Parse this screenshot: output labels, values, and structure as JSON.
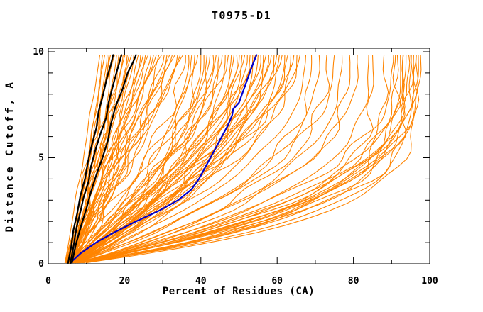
{
  "chart_data": {
    "type": "line",
    "title": "T0975-D1",
    "xlabel": "Percent of Residues (CA)",
    "ylabel": "Distance Cutoff, A",
    "xlim": [
      0,
      100
    ],
    "ylim": [
      0,
      10
    ],
    "x_ticks_major": [
      0,
      20,
      40,
      60,
      80,
      100
    ],
    "x_ticks_minor": [
      10,
      30,
      50,
      70,
      90
    ],
    "y_ticks_major": [
      0,
      5,
      10
    ],
    "y_ticks_minor": [
      1,
      2,
      3,
      4,
      6,
      7,
      8,
      9
    ],
    "grid": false,
    "legend": null,
    "colors": {
      "orange": "#ff8400",
      "black": "#000000",
      "blue": "#0000cc",
      "frame": "#000000",
      "background": "#ffffff"
    },
    "series": {
      "blue_curve": {
        "color": "#0000cc",
        "points": [
          [
            5.8,
            0.05
          ],
          [
            8.5,
            0.5
          ],
          [
            12.5,
            1.0
          ],
          [
            17.5,
            1.5
          ],
          [
            23.0,
            2.0
          ],
          [
            29.0,
            2.5
          ],
          [
            34.0,
            3.0
          ],
          [
            37.5,
            3.5
          ],
          [
            39.5,
            4.0
          ],
          [
            41.0,
            4.5
          ],
          [
            42.5,
            5.0
          ],
          [
            44.0,
            5.5
          ],
          [
            45.5,
            6.0
          ],
          [
            47.0,
            6.5
          ],
          [
            48.2,
            7.0
          ],
          [
            48.5,
            7.3
          ],
          [
            50.0,
            7.6
          ],
          [
            50.8,
            8.0
          ],
          [
            51.8,
            8.5
          ],
          [
            52.8,
            9.0
          ],
          [
            53.8,
            9.5
          ],
          [
            54.6,
            9.85
          ]
        ]
      },
      "black_curves": [
        {
          "points": [
            [
              5.2,
              0.05
            ],
            [
              6.0,
              0.8
            ],
            [
              6.6,
              1.6
            ],
            [
              7.6,
              2.4
            ],
            [
              8.4,
              3.2
            ],
            [
              9.6,
              4.0
            ],
            [
              10.4,
              4.8
            ],
            [
              11.4,
              5.6
            ],
            [
              12.6,
              6.4
            ],
            [
              13.2,
              7.2
            ],
            [
              14.4,
              8.0
            ],
            [
              15.4,
              8.8
            ],
            [
              16.4,
              9.4
            ],
            [
              17.0,
              9.85
            ]
          ]
        },
        {
          "points": [
            [
              5.8,
              0.05
            ],
            [
              6.6,
              0.8
            ],
            [
              7.4,
              1.7
            ],
            [
              8.6,
              2.6
            ],
            [
              9.2,
              3.1
            ],
            [
              10.6,
              3.9
            ],
            [
              11.2,
              4.6
            ],
            [
              12.4,
              5.4
            ],
            [
              13.8,
              6.2
            ],
            [
              15.2,
              6.9
            ],
            [
              15.8,
              7.6
            ],
            [
              16.8,
              8.3
            ],
            [
              18.0,
              9.1
            ],
            [
              19.2,
              9.85
            ]
          ]
        },
        {
          "points": [
            [
              6.2,
              0.05
            ],
            [
              7.2,
              0.9
            ],
            [
              8.6,
              1.8
            ],
            [
              10.0,
              2.6
            ],
            [
              11.2,
              3.4
            ],
            [
              12.6,
              4.2
            ],
            [
              14.2,
              5.0
            ],
            [
              15.6,
              5.8
            ],
            [
              16.4,
              6.6
            ],
            [
              17.6,
              7.4
            ],
            [
              19.4,
              8.2
            ],
            [
              20.8,
              9.0
            ],
            [
              22.2,
              9.5
            ],
            [
              23.0,
              9.85
            ]
          ]
        }
      ],
      "orange_curves": {
        "color": "#ff8400",
        "note": "each entry = [percent at cutoff 0, percent at cutoff 10, curvature exponent]; x(t)=start+(end-start)*(1-(1-t)^p)",
        "curves": [
          [
            4.3,
            13.5,
            1.05
          ],
          [
            5.7,
            14.2,
            1.2
          ],
          [
            6.4,
            14.8,
            0.95
          ],
          [
            4.9,
            15.4,
            1.3
          ],
          [
            7.0,
            15.9,
            1.1
          ],
          [
            5.2,
            16.3,
            1.0
          ],
          [
            6.1,
            16.9,
            1.25
          ],
          [
            4.6,
            17.4,
            0.9
          ],
          [
            6.7,
            17.9,
            1.15
          ],
          [
            5.4,
            18.5,
            1.35
          ],
          [
            4.3,
            19.0,
            1.05
          ],
          [
            5.7,
            19.6,
            1.2
          ],
          [
            6.4,
            20.1,
            0.95
          ],
          [
            4.9,
            20.7,
            1.3
          ],
          [
            7.0,
            21.2,
            1.1
          ],
          [
            5.2,
            21.8,
            1.0
          ],
          [
            6.1,
            22.4,
            1.25
          ],
          [
            4.6,
            23.0,
            0.9
          ],
          [
            6.7,
            23.6,
            1.15
          ],
          [
            5.4,
            24.2,
            1.35
          ],
          [
            4.3,
            24.9,
            1.05
          ],
          [
            5.7,
            25.5,
            1.2
          ],
          [
            6.4,
            26.2,
            0.95
          ],
          [
            4.9,
            26.9,
            1.3
          ],
          [
            7.0,
            27.6,
            1.1
          ],
          [
            5.2,
            28.3,
            1.0
          ],
          [
            6.1,
            29.0,
            1.25
          ],
          [
            4.6,
            29.7,
            0.9
          ],
          [
            6.7,
            30.4,
            1.15
          ],
          [
            5.4,
            31.1,
            1.35
          ],
          [
            4.3,
            31.8,
            1.05
          ],
          [
            5.7,
            32.5,
            1.2
          ],
          [
            6.4,
            33.2,
            0.95
          ],
          [
            4.9,
            33.9,
            1.3
          ],
          [
            7.0,
            34.6,
            1.1
          ],
          [
            5.2,
            35.3,
            1.0
          ],
          [
            4.8,
            36.0,
            1.5
          ],
          [
            6.2,
            36.8,
            1.8
          ],
          [
            5.5,
            37.6,
            1.6
          ],
          [
            7.2,
            38.4,
            2.0
          ],
          [
            4.5,
            39.2,
            1.4
          ],
          [
            6.8,
            40.0,
            1.9
          ],
          [
            5.1,
            40.8,
            1.7
          ],
          [
            7.5,
            41.6,
            2.1
          ],
          [
            5.9,
            42.4,
            1.55
          ],
          [
            6.5,
            43.2,
            1.85
          ],
          [
            4.8,
            44.0,
            1.5
          ],
          [
            6.2,
            44.8,
            1.8
          ],
          [
            5.5,
            45.6,
            1.6
          ],
          [
            7.2,
            46.4,
            2.0
          ],
          [
            4.5,
            47.2,
            1.4
          ],
          [
            6.8,
            48.0,
            1.9
          ],
          [
            5.1,
            48.7,
            1.7
          ],
          [
            7.5,
            49.4,
            2.1
          ],
          [
            5.9,
            50.1,
            1.55
          ],
          [
            6.5,
            50.8,
            1.85
          ],
          [
            4.8,
            51.5,
            1.5
          ],
          [
            6.2,
            52.2,
            1.8
          ],
          [
            5.5,
            52.9,
            1.6
          ],
          [
            7.2,
            53.6,
            2.0
          ],
          [
            4.5,
            54.3,
            1.4
          ],
          [
            6.8,
            55.0,
            1.9
          ],
          [
            5.1,
            55.7,
            1.7
          ],
          [
            7.5,
            56.4,
            2.1
          ],
          [
            5.9,
            57.1,
            1.55
          ],
          [
            6.5,
            57.8,
            1.85
          ],
          [
            4.8,
            58.5,
            1.5
          ],
          [
            6.2,
            59.2,
            1.8
          ],
          [
            5.5,
            59.9,
            1.6
          ],
          [
            7.2,
            60.6,
            2.0
          ],
          [
            4.5,
            61.3,
            1.4
          ],
          [
            6.8,
            62.0,
            1.9
          ],
          [
            5.1,
            62.8,
            1.7
          ],
          [
            7.5,
            63.6,
            2.1
          ],
          [
            5.9,
            64.4,
            1.55
          ],
          [
            6.5,
            65.2,
            1.85
          ],
          [
            4.8,
            66.0,
            1.5
          ],
          [
            5.5,
            67.5,
            2.2
          ],
          [
            7.0,
            69.0,
            2.5
          ],
          [
            6.2,
            71.0,
            2.4
          ],
          [
            8.0,
            73.0,
            2.7
          ],
          [
            5.0,
            75.0,
            2.3
          ],
          [
            7.6,
            77.0,
            2.6
          ],
          [
            6.6,
            79.0,
            2.8
          ],
          [
            8.4,
            81.0,
            2.5
          ],
          [
            5.8,
            84.0,
            3.0
          ],
          [
            7.2,
            90.5,
            2.6
          ],
          [
            5.5,
            91.5,
            3.0
          ],
          [
            7.0,
            92.3,
            3.4
          ],
          [
            6.2,
            93.1,
            2.8
          ],
          [
            8.0,
            93.8,
            3.2
          ],
          [
            5.0,
            94.5,
            3.6
          ],
          [
            7.6,
            95.2,
            2.9
          ],
          [
            6.6,
            95.8,
            3.3
          ],
          [
            8.4,
            96.4,
            3.8
          ],
          [
            5.8,
            97.0,
            3.1
          ],
          [
            7.2,
            97.6,
            2.7
          ],
          [
            6.0,
            88.0,
            4.2
          ],
          [
            6.5,
            93.0,
            4.0
          ],
          [
            7.0,
            95.0,
            4.4
          ],
          [
            5.5,
            85.0,
            3.9
          ],
          [
            8.0,
            96.5,
            4.6
          ],
          [
            7.4,
            91.0,
            4.1
          ]
        ]
      }
    }
  }
}
